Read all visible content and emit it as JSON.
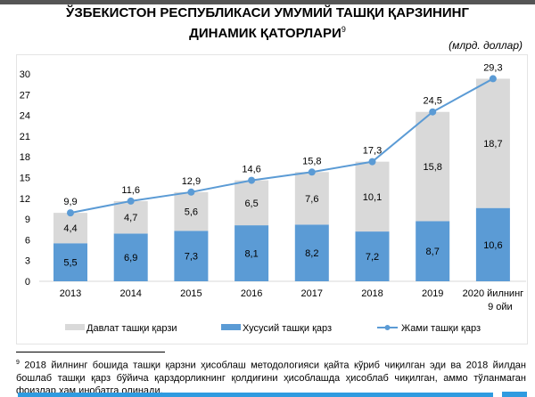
{
  "title_line1": "ЎЗБЕКИСТОН РЕСПУБЛИКАСИ УМУМИЙ ТАШҚИ ҚАРЗИНИНГ",
  "title_line2": "ДИНАМИК ҚАТОРЛАРИ",
  "title_footnote_mark": "9",
  "unit": "(млрд. доллар)",
  "footnote": {
    "mark": "9",
    "text": " 2018 йилнинг бошида ташқи қарзни ҳисоблаш методологияси қайта кўриб чиқилган эди ва 2018 йилдан бошлаб ташқи қарз бўйича қарздорликнинг қолдиғини ҳисоблашда ҳисоблаб чиқилган, аммо тўланмаган фоизлар ҳам инобатга олинади."
  },
  "chart_data": {
    "type": "bar",
    "stacked": true,
    "categories": [
      "2013",
      "2014",
      "2015",
      "2016",
      "2017",
      "2018",
      "2019",
      "2020 йилнинг\n9 ойи"
    ],
    "series": [
      {
        "name": "Хусусий ташқи қарз",
        "type": "bar",
        "color": "#5b9bd5",
        "values": [
          5.5,
          6.9,
          7.3,
          8.1,
          8.2,
          7.2,
          8.7,
          10.6
        ],
        "labels": [
          "5,5",
          "6,9",
          "7,3",
          "8,1",
          "8,2",
          "7,2",
          "8,7",
          "10,6"
        ]
      },
      {
        "name": "Давлат ташқи қарзи",
        "type": "bar",
        "color": "#d9d9d9",
        "values": [
          4.4,
          4.7,
          5.6,
          6.5,
          7.6,
          10.1,
          15.8,
          18.7
        ],
        "labels": [
          "4,4",
          "4,7",
          "5,6",
          "6,5",
          "7,6",
          "10,1",
          "15,8",
          "18,7"
        ]
      },
      {
        "name": "Жами ташқи қарз",
        "type": "line",
        "color": "#5b9bd5",
        "values": [
          9.9,
          11.6,
          12.9,
          14.6,
          15.8,
          17.3,
          24.5,
          29.3
        ],
        "labels": [
          "9,9",
          "11,6",
          "12,9",
          "14,6",
          "15,8",
          "17,3",
          "24,5",
          "29,3"
        ]
      }
    ],
    "yticks": [
      "0",
      "3",
      "6",
      "9",
      "12",
      "15",
      "18",
      "21",
      "24",
      "27",
      "30"
    ],
    "ylim": [
      0,
      30
    ],
    "grid": false,
    "legend_position": "bottom",
    "legend": [
      "Давлат ташқи қарзи",
      "Хусусий ташқи қарз",
      "Жами ташқи қарз"
    ]
  }
}
